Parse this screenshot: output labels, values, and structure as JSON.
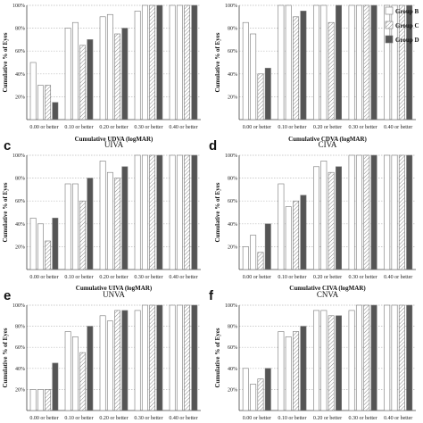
{
  "legend": {
    "entries": [
      {
        "label": "Group B",
        "fill": "white"
      },
      {
        "label": "Group C",
        "fill": "hatch"
      },
      {
        "label": "Group D",
        "fill": "#555555"
      }
    ]
  },
  "colors": {
    "bar_outline": "#777777",
    "group_a": "#ffffff",
    "group_b": "#ffffff",
    "group_c": "hatch",
    "group_d": "#555555",
    "gridline": "#bbbbbb"
  },
  "chart_data": [
    {
      "type": "bar",
      "panel": "a",
      "title": "",
      "xlabel": "Cumulative UDVA (logMAR)",
      "ylabel": "Cumulative % of Eyes",
      "ylim": [
        0,
        100
      ],
      "yticks": [
        "20%",
        "40%",
        "60%",
        "80%",
        "100%"
      ],
      "categories": [
        "0.00 or better",
        "0.10 or better",
        "0.20 or better",
        "0.30 or better",
        "0.40 or better"
      ],
      "series": [
        {
          "values": [
            50,
            80,
            90,
            95,
            100
          ]
        },
        {
          "values": [
            30,
            85,
            92,
            100,
            100
          ]
        },
        {
          "values": [
            30,
            65,
            75,
            100,
            100
          ]
        },
        {
          "values": [
            15,
            70,
            80,
            100,
            100
          ]
        }
      ]
    },
    {
      "type": "bar",
      "panel": "b",
      "title": "",
      "xlabel": "Cumulative CDVA (logMAR)",
      "ylabel": "Cumulative % of Eyes",
      "ylim": [
        0,
        100
      ],
      "yticks": [
        "20%",
        "40%",
        "60%",
        "80%",
        "100%"
      ],
      "categories": [
        "0.00 or better",
        "0.10 or better",
        "0.20 or better",
        "0.30 or better",
        "0.40 or better"
      ],
      "series": [
        {
          "values": [
            85,
            100,
            100,
            100,
            100
          ]
        },
        {
          "values": [
            75,
            100,
            100,
            100,
            100
          ]
        },
        {
          "values": [
            40,
            90,
            85,
            100,
            100
          ]
        },
        {
          "values": [
            45,
            95,
            100,
            100,
            100
          ]
        }
      ]
    },
    {
      "type": "bar",
      "panel": "c",
      "title": "UIVA",
      "xlabel": "Cumulative UIVA (logMAR)",
      "ylabel": "Cumulative % of Eyes",
      "ylim": [
        0,
        100
      ],
      "yticks": [
        "20%",
        "40%",
        "60%",
        "80%",
        "100%"
      ],
      "categories": [
        "0.00 or better",
        "0.10 or better",
        "0.20 or better",
        "0.30 or better",
        "0.40 or better"
      ],
      "series": [
        {
          "values": [
            45,
            75,
            95,
            100,
            100
          ]
        },
        {
          "values": [
            40,
            75,
            85,
            100,
            100
          ]
        },
        {
          "values": [
            25,
            60,
            80,
            100,
            100
          ]
        },
        {
          "values": [
            45,
            80,
            90,
            100,
            100
          ]
        }
      ]
    },
    {
      "type": "bar",
      "panel": "d",
      "title": "CIVA",
      "xlabel": "Cumulative CIVA (logMAR)",
      "ylabel": "Cumulative % of Eyes",
      "ylim": [
        0,
        100
      ],
      "yticks": [
        "20%",
        "40%",
        "60%",
        "80%",
        "100%"
      ],
      "categories": [
        "0.00 or better",
        "0.10 or better",
        "0.20 or better",
        "0.30 or better",
        "0.40 or better"
      ],
      "series": [
        {
          "values": [
            20,
            75,
            90,
            100,
            100
          ]
        },
        {
          "values": [
            30,
            55,
            95,
            100,
            100
          ]
        },
        {
          "values": [
            15,
            60,
            85,
            100,
            100
          ]
        },
        {
          "values": [
            40,
            65,
            90,
            100,
            100
          ]
        }
      ]
    },
    {
      "type": "bar",
      "panel": "e",
      "title": "UNVA",
      "xlabel": "",
      "ylabel": "Cumulative % of Eyes",
      "ylim": [
        0,
        100
      ],
      "yticks": [
        "20%",
        "40%",
        "60%",
        "80%",
        "100%"
      ],
      "categories": [
        "0.00 or better",
        "0.10 or better",
        "0.20 or better",
        "0.30 or better",
        "0.40 or better"
      ],
      "series": [
        {
          "values": [
            20,
            75,
            90,
            95,
            100
          ]
        },
        {
          "values": [
            20,
            70,
            85,
            100,
            100
          ]
        },
        {
          "values": [
            20,
            55,
            95,
            100,
            100
          ]
        },
        {
          "values": [
            45,
            80,
            95,
            100,
            100
          ]
        }
      ]
    },
    {
      "type": "bar",
      "panel": "f",
      "title": "CNVA",
      "xlabel": "",
      "ylabel": "Cumulative % of Eyes",
      "ylim": [
        0,
        100
      ],
      "yticks": [
        "20%",
        "40%",
        "60%",
        "80%",
        "100%"
      ],
      "categories": [
        "0.00 or better",
        "0.10 or better",
        "0.20 or better",
        "0.30 or better",
        "0.40 or better"
      ],
      "series": [
        {
          "values": [
            40,
            75,
            95,
            95,
            100
          ]
        },
        {
          "values": [
            25,
            70,
            95,
            100,
            100
          ]
        },
        {
          "values": [
            30,
            75,
            90,
            100,
            100
          ]
        },
        {
          "values": [
            40,
            80,
            90,
            100,
            100
          ]
        }
      ]
    }
  ],
  "panel_letters": [
    "c",
    "d",
    "e",
    "f"
  ]
}
